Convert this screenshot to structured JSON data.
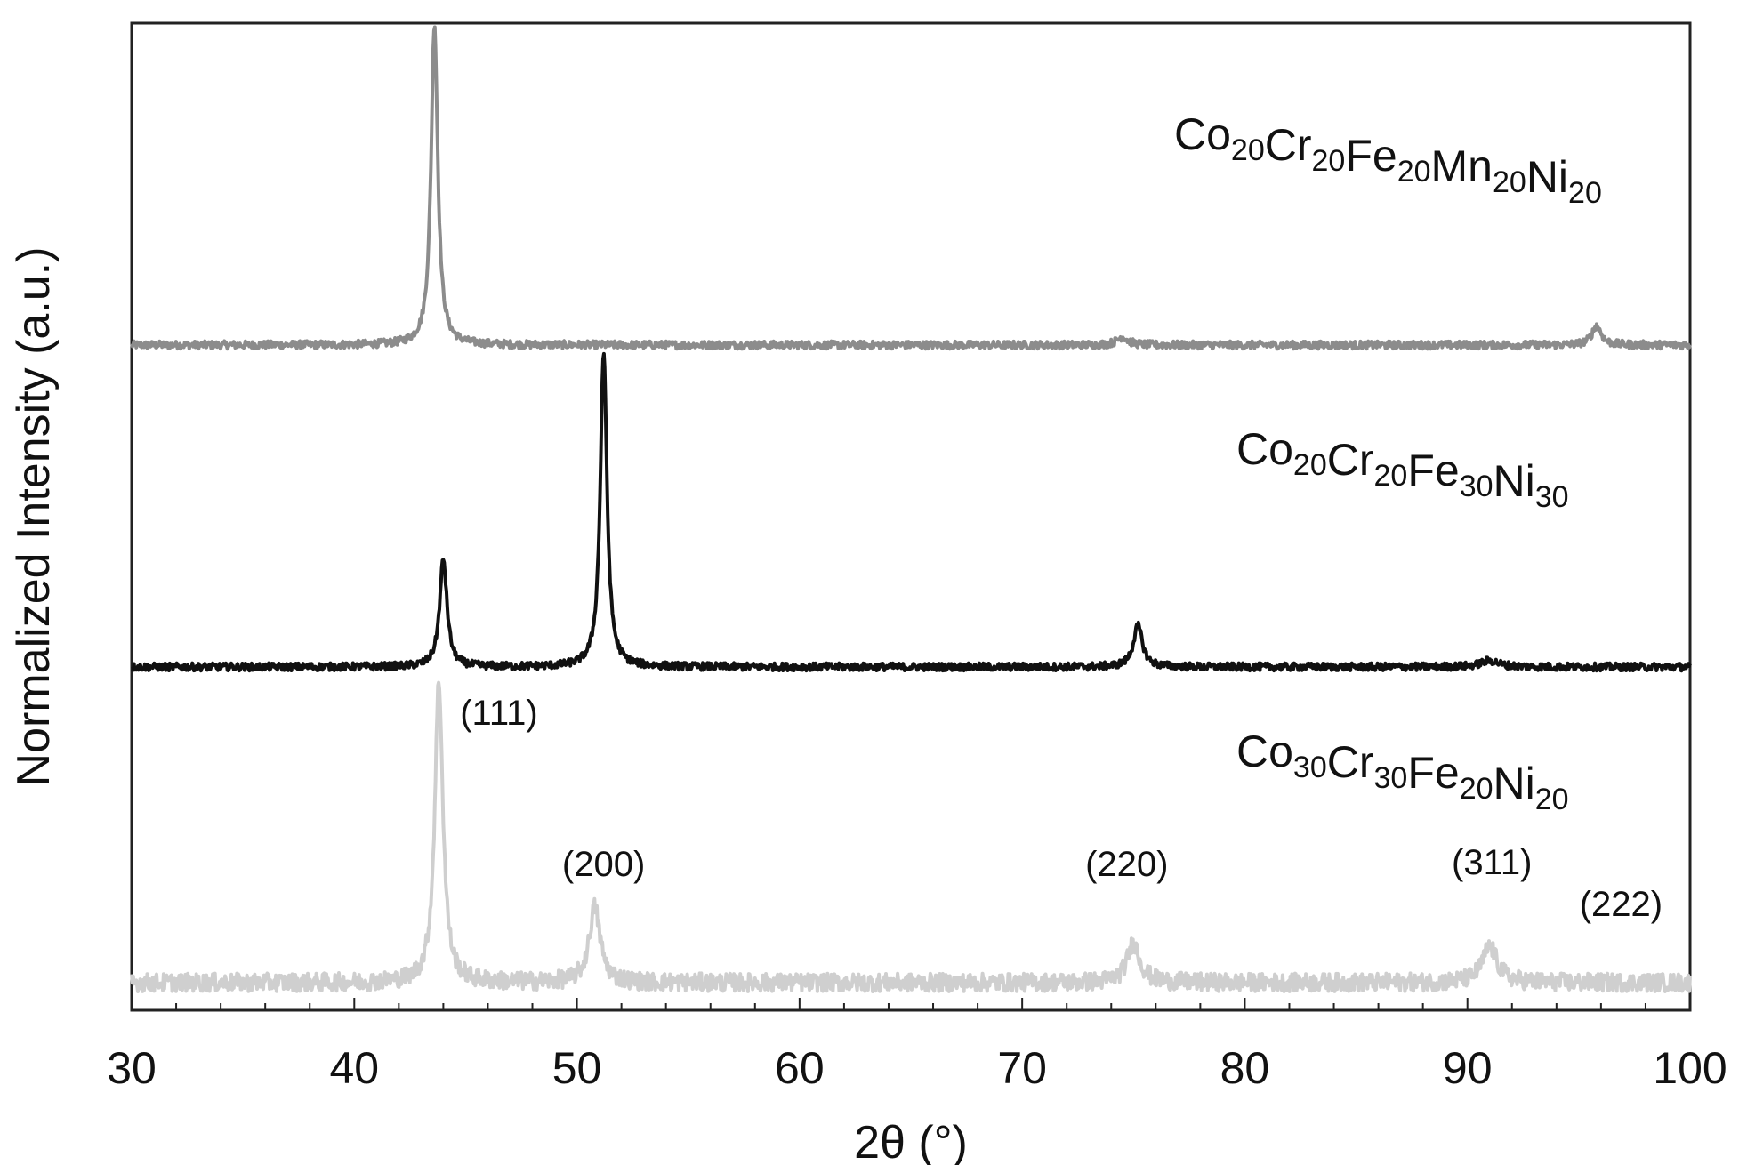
{
  "chart_data": {
    "type": "line",
    "xlabel": "2θ (°)",
    "ylabel": "Normalized Intensity (a.u.)",
    "xlim": [
      30,
      100
    ],
    "x_ticks": [
      30,
      40,
      50,
      60,
      70,
      80,
      90,
      100
    ],
    "x_tick_labels": [
      "30",
      "40",
      "50",
      "60",
      "70",
      "80",
      "90",
      "100"
    ],
    "y_ticks": "none",
    "grid": false,
    "colors": {
      "Co20Cr20Fe20Mn20Ni20": "#8c8c8c",
      "Co20Cr20Fe30Ni30": "#111111",
      "Co30Cr30Fe20Ni20": "#cfcfcf"
    },
    "series": [
      {
        "name": "Co20Cr20Fe20Mn20Ni20",
        "label_parts": [
          [
            "Co",
            "20"
          ],
          [
            "Cr",
            "20"
          ],
          [
            "Fe",
            "20"
          ],
          [
            "Mn",
            "20"
          ],
          [
            "Ni",
            "20"
          ]
        ],
        "baseline": 0,
        "noise": 0.012,
        "peaks": [
          {
            "x": 43.6,
            "height": 1.0,
            "width": 0.18
          },
          {
            "x": 74.5,
            "height": 0.025,
            "width": 0.3
          },
          {
            "x": 95.8,
            "height": 0.06,
            "width": 0.25
          }
        ]
      },
      {
        "name": "Co20Cr20Fe30Ni30",
        "label_parts": [
          [
            "Co",
            "20"
          ],
          [
            "Cr",
            "20"
          ],
          [
            "Fe",
            "30"
          ],
          [
            "Ni",
            "30"
          ]
        ],
        "baseline": 0,
        "noise": 0.012,
        "peaks": [
          {
            "x": 44.0,
            "height": 0.34,
            "width": 0.2
          },
          {
            "x": 51.2,
            "height": 1.0,
            "width": 0.18
          },
          {
            "x": 75.2,
            "height": 0.13,
            "width": 0.25
          },
          {
            "x": 91.0,
            "height": 0.02,
            "width": 0.5
          }
        ]
      },
      {
        "name": "Co30Cr30Fe20Ni20",
        "label_parts": [
          [
            "Co",
            "30"
          ],
          [
            "Cr",
            "30"
          ],
          [
            "Fe",
            "20"
          ],
          [
            "Ni",
            "20"
          ]
        ],
        "baseline": 0,
        "noise": 0.03,
        "peaks": [
          {
            "x": 43.8,
            "height": 1.0,
            "width": 0.22
          },
          {
            "x": 50.8,
            "height": 0.25,
            "width": 0.3
          },
          {
            "x": 75.0,
            "height": 0.13,
            "width": 0.35
          },
          {
            "x": 91.0,
            "height": 0.12,
            "width": 0.4
          }
        ]
      }
    ],
    "annotations": [
      {
        "text": "(111)",
        "x": 46.5
      },
      {
        "text": "(200)",
        "x": 51.2
      },
      {
        "text": "(220)",
        "x": 74.7
      },
      {
        "text": "(311)",
        "x": 91.1
      },
      {
        "text": "(222)",
        "x": 96.9
      }
    ]
  }
}
